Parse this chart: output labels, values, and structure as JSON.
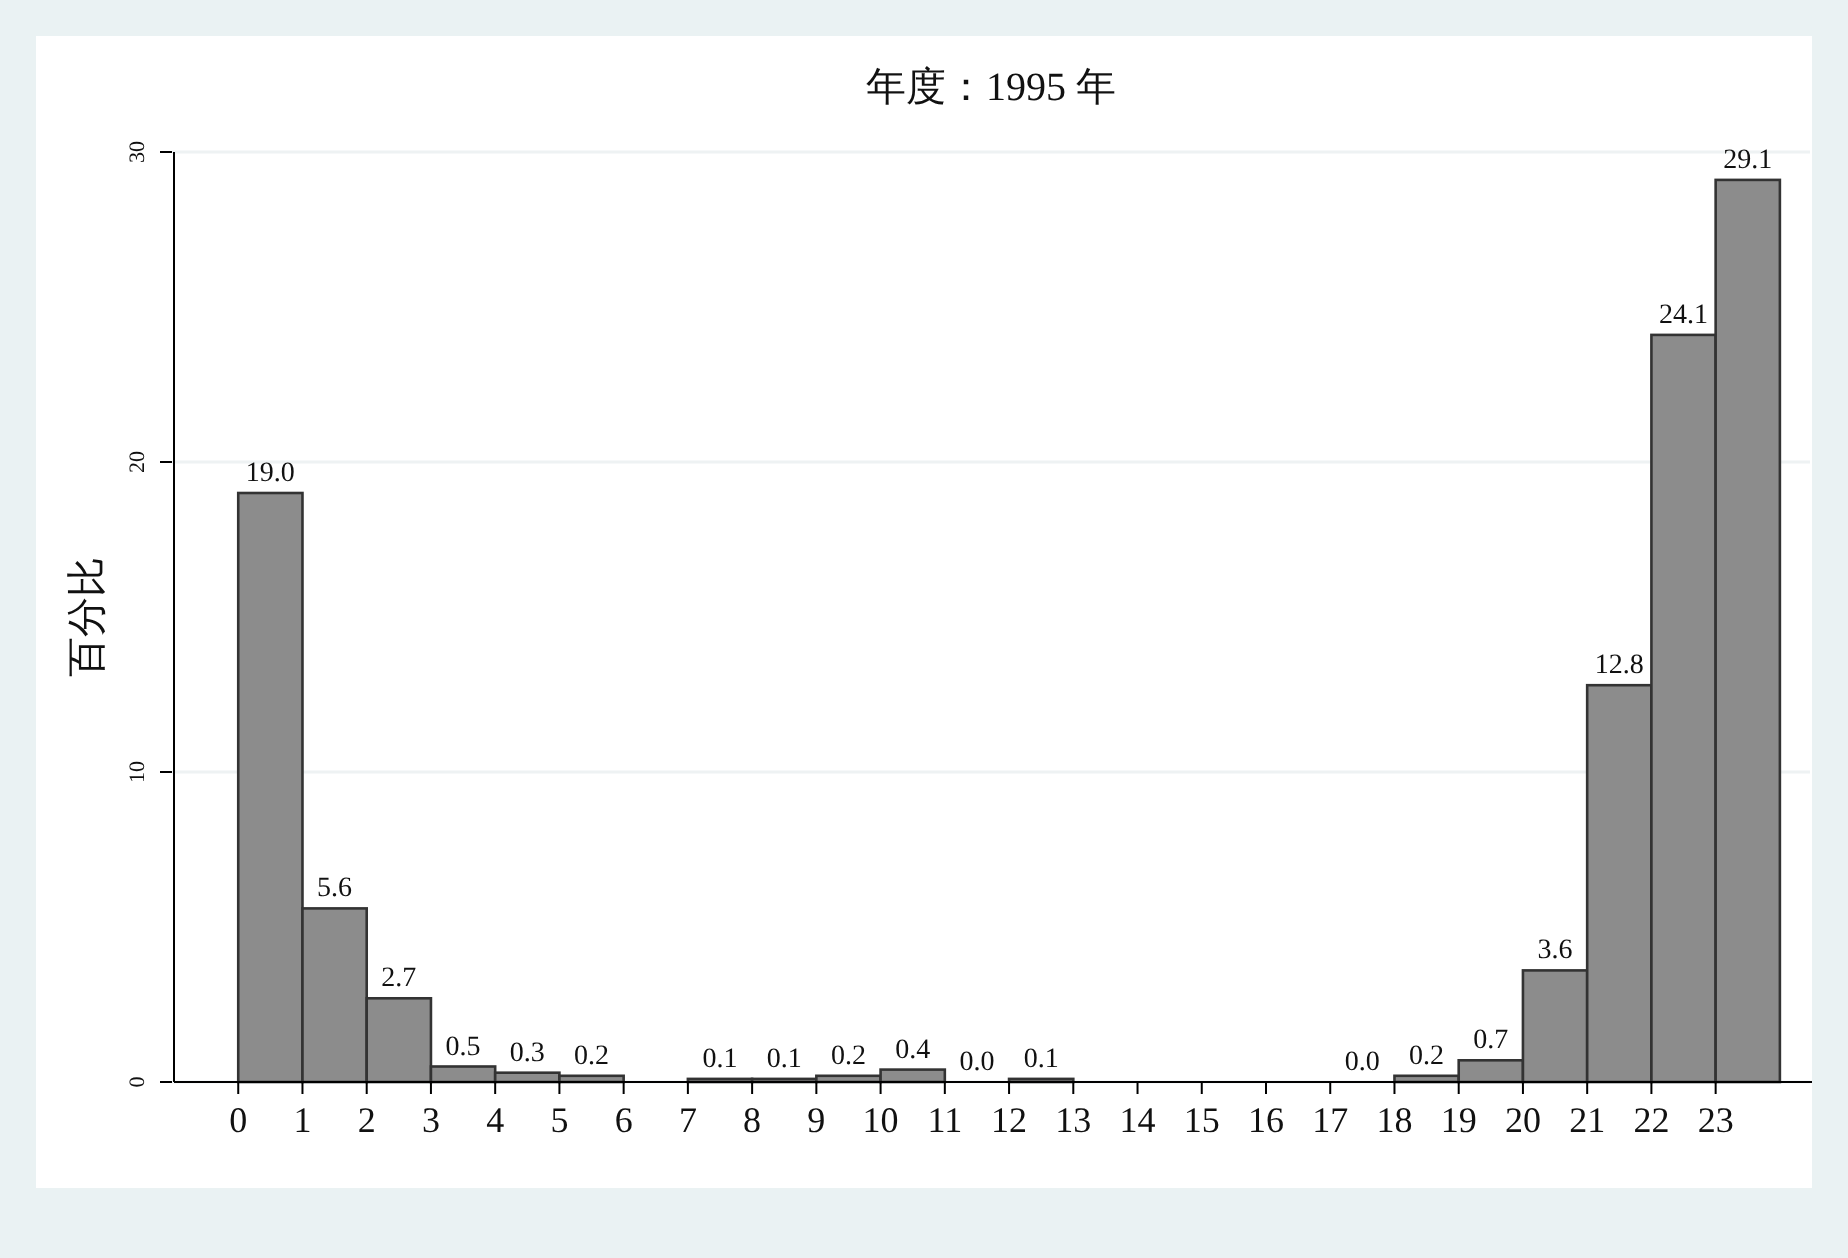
{
  "chart_data": {
    "type": "histogram",
    "title": "年度：1995 年",
    "ylabel": "百分比",
    "bins": [
      0,
      1,
      2,
      3,
      4,
      5,
      6,
      7,
      8,
      9,
      10,
      11,
      12,
      13,
      14,
      15,
      16,
      17,
      18,
      19,
      20,
      21,
      22,
      23,
      24
    ],
    "values": [
      19.0,
      5.6,
      2.7,
      0.5,
      0.3,
      0.2,
      null,
      0.1,
      0.1,
      0.2,
      0.4,
      0.0,
      0.1,
      null,
      null,
      null,
      null,
      0.0,
      0.2,
      0.7,
      3.6,
      12.8,
      24.1,
      29.1
    ],
    "value_labels": [
      "19.0",
      "5.6",
      "2.7",
      "0.5",
      "0.3",
      "0.2",
      null,
      "0.1",
      "0.1",
      "0.2",
      "0.4",
      "0.0",
      "0.1",
      null,
      null,
      null,
      null,
      "0.0",
      "0.2",
      "0.7",
      "3.6",
      "12.8",
      "24.1",
      "29.1"
    ],
    "color": "#8c8c8c",
    "xlim": [
      -1,
      24.5
    ],
    "xticks": [
      0,
      1,
      2,
      3,
      4,
      5,
      6,
      7,
      8,
      9,
      10,
      11,
      12,
      13,
      14,
      15,
      16,
      17,
      18,
      19,
      20,
      21,
      22,
      23
    ],
    "ylim": [
      0,
      30
    ],
    "yticks": [
      0,
      10,
      20,
      30
    ],
    "grid": "y"
  }
}
